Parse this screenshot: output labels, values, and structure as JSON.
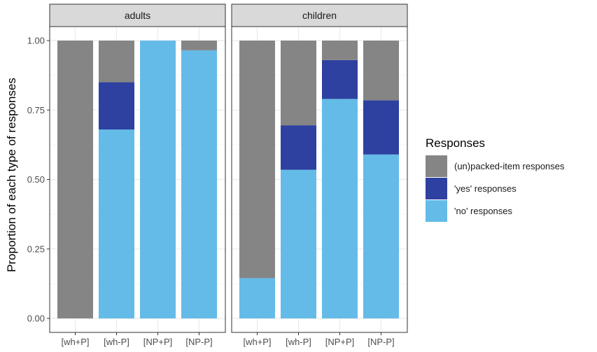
{
  "chart_data": {
    "type": "bar",
    "stacked": true,
    "facets": [
      "adults",
      "children"
    ],
    "categories": [
      "[wh+P]",
      "[wh-P]",
      "[NP+P]",
      "[NP-P]"
    ],
    "ylabel": "Proportion of each type of responses",
    "xlabel": "",
    "ylim": [
      0,
      1
    ],
    "yticks": [
      "0.00",
      "0.25",
      "0.50",
      "0.75",
      "1.00"
    ],
    "grid": true,
    "legend": {
      "title": "Responses",
      "placement": "right",
      "entries": [
        "(un)packed-item responses",
        "'yes' responses",
        "'no' responses"
      ]
    },
    "series": [
      {
        "name": "'no' responses",
        "color": "#64bbe8",
        "values": {
          "adults": [
            0.0,
            0.68,
            1.0,
            0.965
          ],
          "children": [
            0.145,
            0.535,
            0.79,
            0.59
          ]
        }
      },
      {
        "name": "'yes' responses",
        "color": "#2e40a0",
        "values": {
          "adults": [
            0.0,
            0.17,
            0.0,
            0.0
          ],
          "children": [
            0.0,
            0.16,
            0.14,
            0.195
          ]
        }
      },
      {
        "name": "(un)packed-item responses",
        "color": "#858585",
        "values": {
          "adults": [
            1.0,
            0.15,
            0.0,
            0.035
          ],
          "children": [
            0.855,
            0.305,
            0.07,
            0.215
          ]
        }
      }
    ]
  }
}
